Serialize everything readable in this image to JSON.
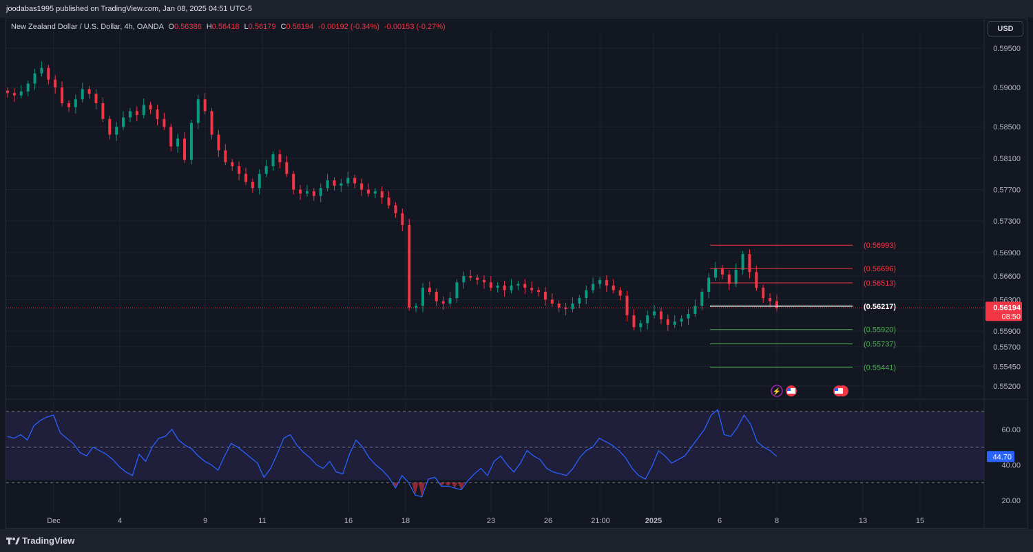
{
  "header": {
    "publisher": "joodabas1995 published on TradingView.com, Jan 08, 2025 04:51 UTC-5",
    "symbol": "New Zealand Dollar / U.S. Dollar, 4h, OANDA",
    "ohlc": {
      "o_label": "O",
      "o": "0.56386",
      "h_label": "H",
      "h": "0.56418",
      "l_label": "L",
      "l": "0.56179",
      "c_label": "C",
      "c": "0.56194",
      "change": "-0.00192 (-0.34%)",
      "change2": "-0.00153 (-0.27%)"
    },
    "currency": "USD"
  },
  "footer": {
    "brand": "TradingView"
  },
  "colors": {
    "bull": "#089981",
    "bear": "#f23645",
    "rsi": "#2962ff",
    "background": "#131722"
  },
  "chart_data": [
    {
      "type": "candlestick",
      "title": "New Zealand Dollar / U.S. Dollar, 4h, OANDA",
      "ylim": [
        0.5505,
        0.5972
      ],
      "y_ticks": [
        "0.59500",
        "0.59000",
        "0.58500",
        "0.58100",
        "0.57700",
        "0.57300",
        "0.56900",
        "0.56600",
        "0.56300",
        "0.55900",
        "0.55700",
        "0.55450",
        "0.55200"
      ],
      "x_ticks": [
        "Dec",
        "4",
        "9",
        "11",
        "16",
        "18",
        "23",
        "26",
        "21:00",
        "2025",
        "6",
        "8",
        "13",
        "15"
      ],
      "grid": true,
      "last_price": {
        "value": "0.56194",
        "countdown": "08:50"
      },
      "levels": [
        {
          "label": "(0.56993)",
          "value": 0.56993,
          "color": "#f23645"
        },
        {
          "label": "(0.56696)",
          "value": 0.56696,
          "color": "#f23645"
        },
        {
          "label": "(0.56513)",
          "value": 0.56513,
          "color": "#f23645"
        },
        {
          "label": "(0.56217)",
          "value": 0.56217,
          "color": "#ffffff"
        },
        {
          "label": "(0.55920)",
          "value": 0.5592,
          "color": "#4caf50"
        },
        {
          "label": "(0.55737)",
          "value": 0.55737,
          "color": "#4caf50"
        },
        {
          "label": "(0.55441)",
          "value": 0.55441,
          "color": "#4caf50"
        }
      ],
      "close_path": [
        0.5893,
        0.589,
        0.5895,
        0.5905,
        0.5918,
        0.5925,
        0.591,
        0.59,
        0.588,
        0.5875,
        0.5885,
        0.5898,
        0.5892,
        0.588,
        0.586,
        0.584,
        0.585,
        0.5862,
        0.587,
        0.5865,
        0.5878,
        0.5872,
        0.586,
        0.585,
        0.5825,
        0.5835,
        0.5808,
        0.5855,
        0.5885,
        0.587,
        0.584,
        0.582,
        0.5805,
        0.58,
        0.579,
        0.578,
        0.5772,
        0.579,
        0.58,
        0.5815,
        0.5805,
        0.579,
        0.577,
        0.5765,
        0.5768,
        0.5762,
        0.5772,
        0.5782,
        0.5775,
        0.5778,
        0.5785,
        0.5778,
        0.577,
        0.5765,
        0.5768,
        0.576,
        0.575,
        0.574,
        0.5725,
        0.562,
        0.5622,
        0.5645,
        0.564,
        0.5628,
        0.5625,
        0.5632,
        0.5652,
        0.566,
        0.5658,
        0.5655,
        0.5652,
        0.5645,
        0.5648,
        0.5642,
        0.5648,
        0.565,
        0.5645,
        0.5642,
        0.564,
        0.563,
        0.5625,
        0.562,
        0.5618,
        0.5625,
        0.5632,
        0.5642,
        0.565,
        0.5655,
        0.5648,
        0.5642,
        0.5635,
        0.561,
        0.5595,
        0.56,
        0.561,
        0.5615,
        0.5605,
        0.5598,
        0.5602,
        0.5606,
        0.5612,
        0.5622,
        0.564,
        0.5658,
        0.567,
        0.5662,
        0.565,
        0.5668,
        0.5688,
        0.5665,
        0.5645,
        0.5632,
        0.5628,
        0.5619
      ],
      "candles_source_note": ""
    },
    {
      "type": "line",
      "name": "RSI",
      "ylim": [
        15,
        75
      ],
      "y_ticks": [
        "60.00",
        "40.00",
        "20.00"
      ],
      "bands": [
        70,
        50,
        30
      ],
      "last_value": "44.70",
      "values": [
        56,
        55,
        57,
        54,
        62,
        65,
        67,
        68,
        58,
        55,
        52,
        47,
        45,
        50,
        48,
        46,
        43,
        39,
        36,
        34,
        46,
        42,
        50,
        55,
        56,
        60,
        54,
        51,
        49,
        45,
        42,
        40,
        37,
        45,
        52,
        50,
        47,
        44,
        41,
        33,
        38,
        46,
        55,
        57,
        51,
        47,
        44,
        40,
        38,
        42,
        36,
        35,
        46,
        54,
        50,
        44,
        40,
        37,
        33,
        27,
        34,
        30,
        23,
        22,
        32,
        33,
        28,
        28,
        27,
        26,
        31,
        35,
        38,
        34,
        42,
        45,
        40,
        36,
        41,
        48,
        45,
        43,
        38,
        36,
        35,
        34,
        38,
        44,
        48,
        50,
        55,
        53,
        51,
        48,
        44,
        38,
        34,
        32,
        39,
        48,
        45,
        41,
        43,
        45,
        50,
        55,
        60,
        68,
        71,
        57,
        56,
        61,
        68,
        63,
        53,
        50,
        48,
        44.7
      ]
    }
  ]
}
